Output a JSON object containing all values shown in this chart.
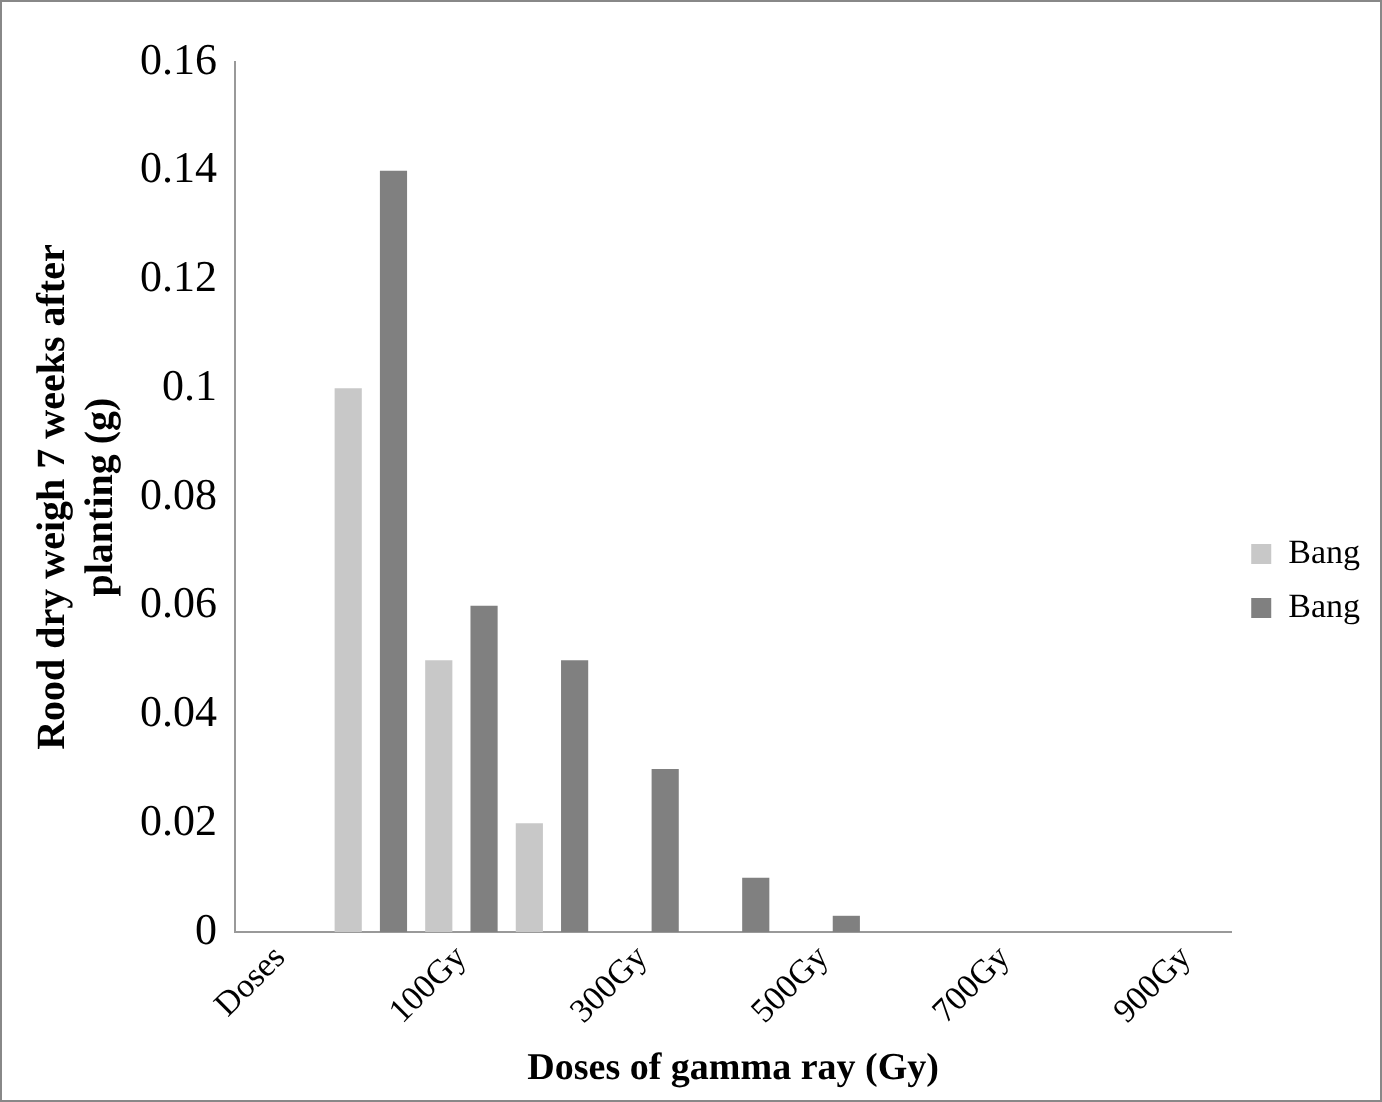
{
  "chart_data": {
    "type": "bar",
    "xlabel": "Doses of gamma ray (Gy)",
    "ylabel": "Rood dry weigh 7 weeks after planting (g)",
    "categories": [
      "Doses",
      null,
      "100Gy",
      null,
      "300Gy",
      null,
      "500Gy",
      null,
      "700Gy",
      null,
      "900Gy"
    ],
    "series": [
      {
        "name": "Bang",
        "color": "#c8c8c8",
        "values": [
          0,
          0.1,
          0.05,
          0.02,
          0,
          0,
          0,
          0,
          0,
          0,
          0
        ]
      },
      {
        "name": "Bang",
        "color": "#808080",
        "values": [
          0,
          0.14,
          0.06,
          0.05,
          0.03,
          0.01,
          0.003,
          0,
          0,
          0,
          0
        ]
      }
    ],
    "ylim": [
      0,
      0.16
    ],
    "yticks": [
      0,
      0.02,
      0.04,
      0.06,
      0.08,
      0.1,
      0.12,
      0.14,
      0.16
    ],
    "grid": false,
    "legend": "right"
  }
}
